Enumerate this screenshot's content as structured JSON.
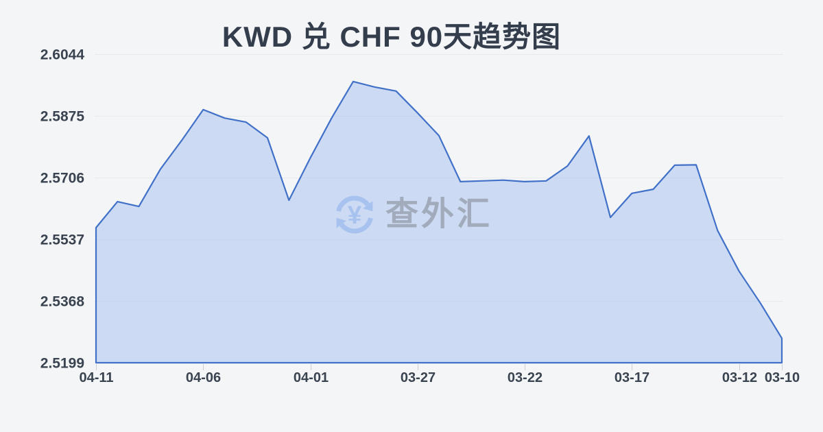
{
  "title": "KWD 兑 CHF 90天趋势图",
  "watermark": {
    "text": "查外汇",
    "symbol": "¥",
    "icon": "currency-exchange-icon",
    "icon_color": "#a5c0f0",
    "text_color": "#99a1af"
  },
  "colors": {
    "background": "#f4f5f7",
    "line": "#4070c8",
    "area_fill": "rgba(172,196,240,0.55)",
    "grid": "#e8eaee",
    "axis_tick": "#c9cfd7",
    "label": "#3a4350",
    "title": "#333d4c"
  },
  "chart_data": {
    "type": "area",
    "title": "KWD 兑 CHF 90天趋势图",
    "xlabel": "",
    "ylabel": "",
    "ylim": [
      2.5199,
      2.6044
    ],
    "y_ticks": [
      2.6044,
      2.5875,
      2.5706,
      2.5537,
      2.5368,
      2.5199
    ],
    "y_tick_labels": [
      "2.6044",
      "2.5875",
      "2.5706",
      "2.5537",
      "2.5368",
      "2.5199"
    ],
    "x_tick_labels": [
      "04-11",
      "04-06",
      "04-01",
      "03-27",
      "03-22",
      "03-17",
      "03-12",
      "03-10"
    ],
    "x_tick_indices": [
      0,
      5,
      10,
      15,
      20,
      25,
      30,
      32
    ],
    "x": [
      "04-11",
      "04-10",
      "04-09",
      "04-08",
      "04-07",
      "04-06",
      "04-05",
      "04-04",
      "04-03",
      "04-02",
      "04-01",
      "03-31",
      "03-30",
      "03-29",
      "03-28",
      "03-27",
      "03-26",
      "03-25",
      "03-24",
      "03-23",
      "03-22",
      "03-21",
      "03-20",
      "03-19",
      "03-18",
      "03-17",
      "03-16",
      "03-15",
      "03-14",
      "03-13",
      "03-12",
      "03-11",
      "03-10"
    ],
    "values": [
      2.5569,
      2.564,
      2.5627,
      2.5729,
      2.5808,
      2.5892,
      2.5869,
      2.5858,
      2.5815,
      2.5644,
      2.576,
      2.587,
      2.5969,
      2.5954,
      2.5943,
      2.5883,
      2.5821,
      2.5695,
      2.5697,
      2.5699,
      2.5695,
      2.5697,
      2.5738,
      2.582,
      2.5597,
      2.5663,
      2.5674,
      2.574,
      2.5741,
      2.5561,
      2.545,
      2.5362,
      2.5266
    ],
    "grid": "horizontal",
    "legend": "none",
    "note_axis_direction": "dates run newest (left) to oldest (right)"
  }
}
